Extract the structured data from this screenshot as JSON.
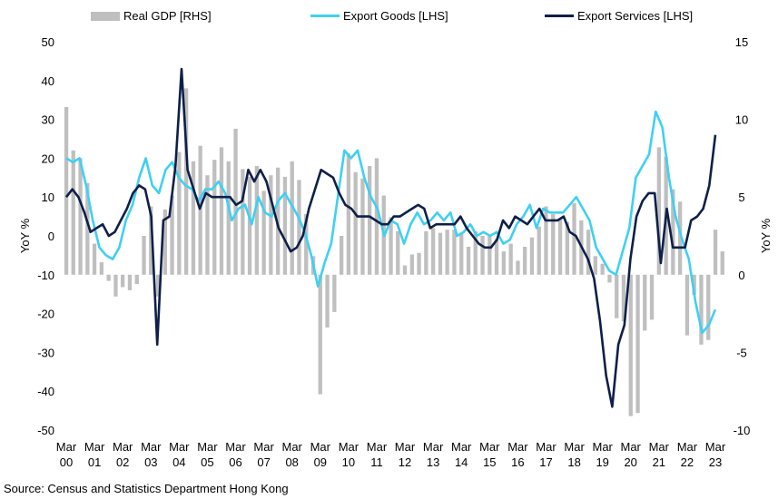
{
  "chart_data": {
    "type": "bar+line",
    "colors": {
      "gdp": "#bfbfbf",
      "goods": "#3fd0f2",
      "services": "#0f1f4a"
    },
    "legend": {
      "gdp": "Real GDP [RHS]",
      "goods": "Export Goods [LHS]",
      "services": "Export Services [LHS]"
    },
    "left_axis": {
      "label": "YoY %",
      "ticks": [
        50,
        40,
        30,
        20,
        10,
        0,
        -10,
        -20,
        -30,
        -40,
        -50
      ],
      "ylim": [
        -50,
        50
      ]
    },
    "right_axis": {
      "label": "YoY %",
      "ticks": [
        15,
        10,
        5,
        0,
        -5,
        -10
      ],
      "ylim": [
        -10,
        15
      ]
    },
    "x_ticks": [
      {
        "top": "Mar",
        "bottom": "00",
        "q": 0
      },
      {
        "top": "Mar",
        "bottom": "01",
        "q": 4
      },
      {
        "top": "Mar",
        "bottom": "02",
        "q": 8
      },
      {
        "top": "Mar",
        "bottom": "03",
        "q": 12
      },
      {
        "top": "Mar",
        "bottom": "04",
        "q": 16
      },
      {
        "top": "Mar",
        "bottom": "05",
        "q": 20
      },
      {
        "top": "Mar",
        "bottom": "06",
        "q": 24
      },
      {
        "top": "Mar",
        "bottom": "07",
        "q": 28
      },
      {
        "top": "Mar",
        "bottom": "08",
        "q": 32
      },
      {
        "top": "Mar",
        "bottom": "09",
        "q": 36
      },
      {
        "top": "Mar",
        "bottom": "10",
        "q": 40
      },
      {
        "top": "Mar",
        "bottom": "11",
        "q": 44
      },
      {
        "top": "Mar",
        "bottom": "12",
        "q": 48
      },
      {
        "top": "Mar",
        "bottom": "13",
        "q": 52
      },
      {
        "top": "Mar",
        "bottom": "14",
        "q": 56
      },
      {
        "top": "Mar",
        "bottom": "15",
        "q": 60
      },
      {
        "top": "Mar",
        "bottom": "16",
        "q": 64
      },
      {
        "top": "Mar",
        "bottom": "17",
        "q": 68
      },
      {
        "top": "Mar",
        "bottom": "18",
        "q": 72
      },
      {
        "top": "Mar",
        "bottom": "19",
        "q": 76
      },
      {
        "top": "Mar",
        "bottom": "20",
        "q": 80
      },
      {
        "top": "Mar",
        "bottom": "21",
        "q": 84
      },
      {
        "top": "Mar",
        "bottom": "22",
        "q": 88
      },
      {
        "top": "Mar",
        "bottom": "23",
        "q": 92
      }
    ],
    "series": [
      {
        "name": "Real GDP [RHS]",
        "axis": "right",
        "kind": "bar",
        "values": [
          10.8,
          8,
          7.5,
          5.9,
          2,
          0.8,
          -0.4,
          -1.4,
          -0.8,
          -1,
          -0.6,
          2.5,
          4.4,
          -1.4,
          4.2,
          5.1,
          7.9,
          12,
          7.3,
          8.3,
          6.4,
          7.4,
          8.2,
          7.3,
          9.4,
          6.8,
          6.3,
          7,
          5.4,
          6.4,
          6.9,
          6.3,
          7.3,
          6.1,
          3.9,
          1.2,
          -7.7,
          -3.4,
          -2.4,
          2.5,
          7.8,
          6.6,
          6.2,
          7,
          7.5,
          5.1,
          3.7,
          2.8,
          0.6,
          1.3,
          1.4,
          2.8,
          3,
          2.7,
          2.9,
          2.9,
          2.7,
          1.8,
          2.8,
          2.5,
          2.5,
          2.3,
          1.5,
          2,
          0.9,
          1.8,
          2.4,
          3.1,
          4.4,
          3.9,
          3.6,
          3.4,
          4.6,
          3.5,
          2.9,
          1.2,
          0.7,
          -0.5,
          -2.8,
          -3,
          -9.1,
          -8.9,
          -3.6,
          -2.9,
          8.2,
          7.6,
          5.5,
          4.7,
          -3.9,
          -1.3,
          -4.5,
          -4.2,
          2.9,
          1.5
        ],
        "q_offset": 0
      },
      {
        "name": "Export Goods [LHS]",
        "axis": "left",
        "kind": "line",
        "values": [
          20,
          19,
          20,
          13,
          4,
          -3,
          -5,
          -6,
          -3,
          4,
          8,
          15,
          20,
          13,
          11,
          17,
          19,
          15,
          13,
          12,
          9,
          12,
          12,
          14,
          11,
          4,
          7,
          8,
          3,
          10,
          6,
          5,
          9,
          11,
          8,
          5,
          1,
          -5,
          -13,
          -7,
          -2,
          10,
          22,
          20,
          22,
          15,
          10,
          7,
          0,
          4,
          3,
          -2,
          3,
          6,
          3,
          4,
          6,
          4,
          6,
          0,
          1,
          3,
          0,
          1,
          0,
          1,
          -2,
          -1,
          3,
          5,
          8,
          2,
          7,
          6,
          6,
          6,
          8,
          10,
          7,
          4,
          -3,
          -6,
          -9,
          -10,
          -4,
          2,
          15,
          18,
          21,
          32,
          28,
          15,
          5,
          -1,
          -6,
          -17,
          -25,
          -23,
          -19
        ],
        "q_offset": 0
      },
      {
        "name": "Export Services [LHS]",
        "axis": "left",
        "kind": "line",
        "values": [
          10,
          12,
          10,
          6,
          1,
          2,
          3,
          0,
          1,
          4,
          7,
          11,
          13,
          12,
          5,
          -28,
          4,
          5,
          18,
          43,
          17,
          12,
          7,
          11,
          10,
          10,
          10,
          10,
          8,
          9,
          17,
          14,
          17,
          14,
          8,
          2,
          -1,
          -4,
          -3,
          0,
          7,
          12,
          17,
          16,
          15,
          11,
          8,
          7,
          5,
          5,
          5,
          4,
          3,
          3,
          5,
          5,
          6,
          7,
          8,
          7,
          2,
          3,
          3,
          3,
          3,
          5,
          2,
          0,
          -2,
          -3,
          -3,
          -1,
          4,
          2,
          5,
          4,
          3,
          5,
          7,
          4,
          4,
          4,
          5,
          1,
          0,
          -3,
          -6,
          -11,
          -22,
          -36,
          -44,
          -28,
          -23,
          -6,
          5,
          9,
          11,
          11,
          -7,
          7,
          -3,
          -3,
          -3,
          4,
          5,
          7,
          13,
          26
        ],
        "q_offset": 0
      }
    ]
  },
  "source": "Source: Census and Statistics Department Hong Kong"
}
